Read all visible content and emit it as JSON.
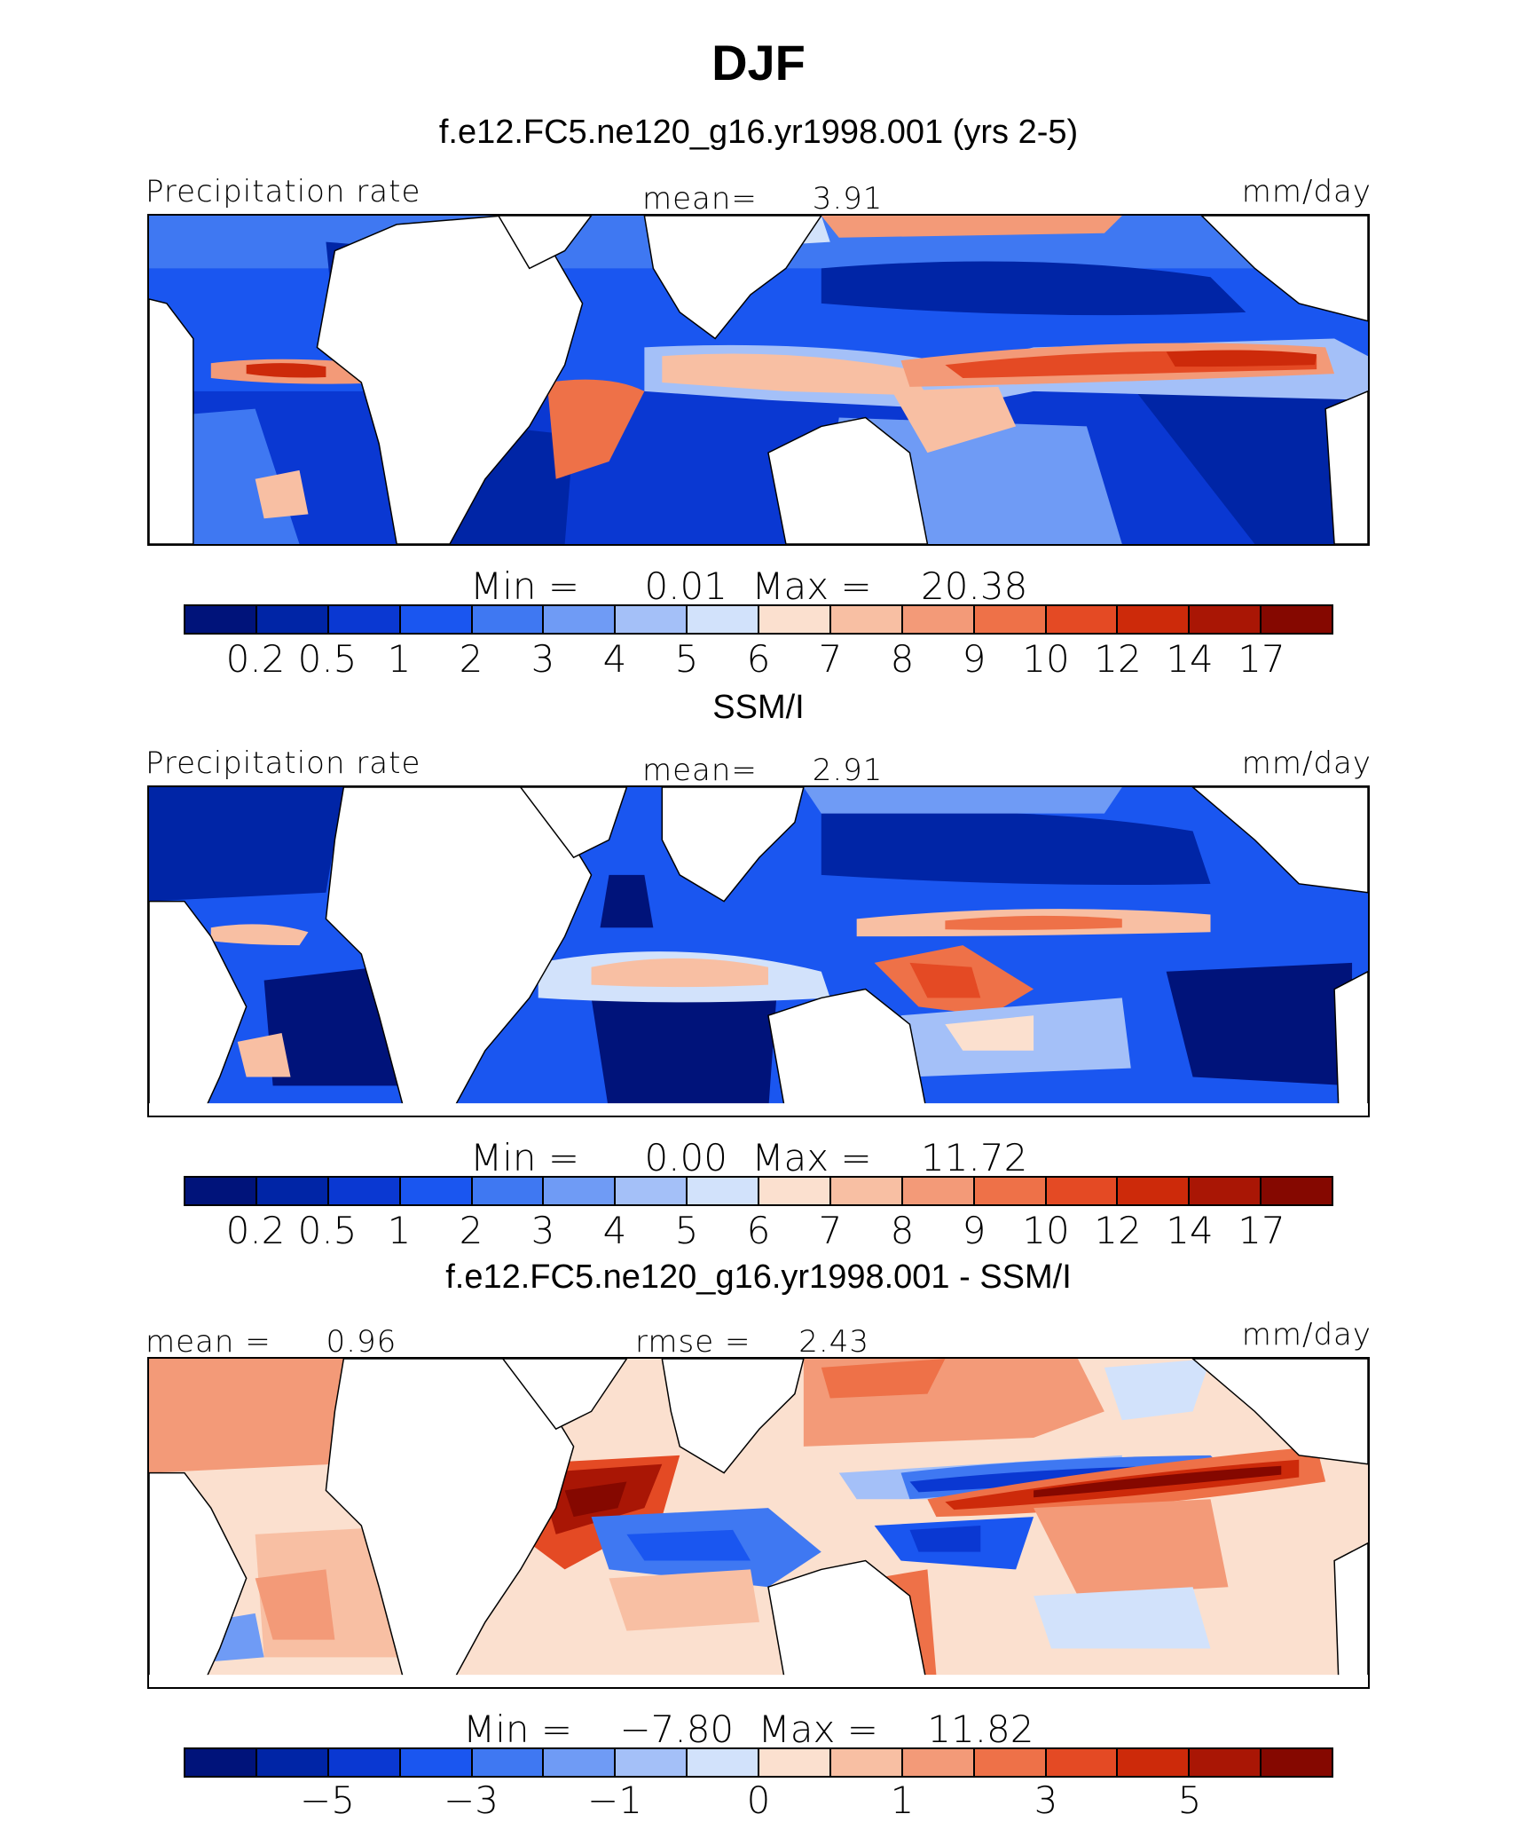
{
  "title": "DJF",
  "panels": [
    {
      "title": "f.e12.FC5.ne120_g16.yr1998.001 (yrs 2-5)",
      "left_label": "Precipitation rate",
      "center_label": "mean=",
      "center_value": "3.91",
      "units": "mm/day",
      "min_label": "Min =",
      "min_value": "0.01",
      "max_label": "Max =",
      "max_value": "20.38",
      "colorbar_ticks": [
        "0.2",
        "0.5",
        "1",
        "2",
        "3",
        "4",
        "5",
        "6",
        "7",
        "8",
        "9",
        "10",
        "12",
        "14",
        "17"
      ]
    },
    {
      "title": "SSM/I",
      "left_label": "Precipitation rate",
      "center_label": "mean=",
      "center_value": "2.91",
      "units": "mm/day",
      "min_label": "Min =",
      "min_value": "0.00",
      "max_label": "Max =",
      "max_value": "11.72",
      "colorbar_ticks": [
        "0.2",
        "0.5",
        "1",
        "2",
        "3",
        "4",
        "5",
        "6",
        "7",
        "8",
        "9",
        "10",
        "12",
        "14",
        "17"
      ]
    },
    {
      "title": "f.e12.FC5.ne120_g16.yr1998.001 - SSM/I",
      "left_label": "mean =",
      "left_value": "0.96",
      "center_label": "rmse =",
      "center_value": "2.43",
      "units": "mm/day",
      "min_label": "Min =",
      "min_value": "−7.80",
      "max_label": "Max =",
      "max_value": "11.82",
      "colorbar_ticks": [
        "−5",
        "−3",
        "−1",
        "0",
        "1",
        "3",
        "5"
      ]
    }
  ],
  "colors": {
    "precip_scale": [
      "#00137a",
      "#0025a6",
      "#0a38d2",
      "#1a56f0",
      "#3f78f2",
      "#6f9bf5",
      "#a4c0f8",
      "#d2e2fb",
      "#fbe0cf",
      "#f8bfa3",
      "#f39a78",
      "#ee7148",
      "#e44a24",
      "#cd2a0a",
      "#a91605",
      "#850800"
    ],
    "diff_scale": [
      "#00137a",
      "#0025a6",
      "#0a38d2",
      "#1a56f0",
      "#3f78f2",
      "#6f9bf5",
      "#a4c0f8",
      "#d2e2fb",
      "#fbe0cf",
      "#f8bfa3",
      "#f39a78",
      "#ee7148",
      "#e44a24",
      "#cd2a0a",
      "#a91605",
      "#850800"
    ],
    "land": "#ffffff",
    "coastline": "#000000"
  }
}
